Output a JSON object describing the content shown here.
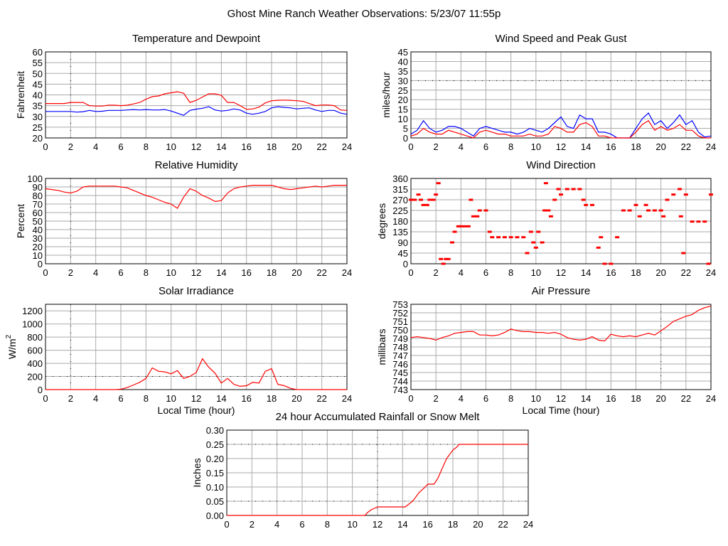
{
  "page_title": "Ghost Mine Ranch Weather Observations: 5/23/07 11:55p",
  "colors": {
    "red": "#ff0000",
    "blue": "#0000ff",
    "grid": "#aaaaaa"
  },
  "chart_data": [
    {
      "id": "temp",
      "type": "line",
      "title": "Temperature and Dewpoint",
      "xlabel": "",
      "ylabel": "Fahrenheit",
      "xlim": [
        0,
        24
      ],
      "ylim": [
        20,
        60
      ],
      "ystep": 5,
      "xstep": 2,
      "grid": true,
      "series": [
        {
          "name": "Temperature",
          "color": "#ff0000",
          "values": [
            36,
            36,
            36,
            36,
            36.5,
            36.5,
            36.5,
            35,
            34.8,
            34.8,
            35.2,
            35.2,
            35,
            35.2,
            35.8,
            36.5,
            38,
            39.2,
            39.5,
            40.5,
            41,
            41.5,
            40.8,
            36.5,
            37.5,
            39,
            40.5,
            40.5,
            39.8,
            36.5,
            36.5,
            35,
            33.3,
            33.5,
            34.3,
            36.3,
            37.3,
            37.5,
            37.6,
            37.5,
            37.3,
            37,
            36,
            35,
            35.3,
            35.3,
            35,
            33,
            32.8
          ]
        },
        {
          "name": "Dewpoint",
          "color": "#0000ff",
          "values": [
            32.3,
            32.3,
            32.3,
            32.3,
            32.3,
            32,
            32.2,
            32.8,
            32.3,
            32.4,
            32.8,
            32.8,
            32.8,
            33,
            33.2,
            33,
            33.2,
            33,
            33,
            33.2,
            32.5,
            31.5,
            30.5,
            32.8,
            33.4,
            33.8,
            34.5,
            33,
            32.5,
            32.8,
            33.5,
            33,
            31.5,
            31,
            31.5,
            32.3,
            34,
            34.5,
            34.2,
            34,
            33.5,
            33.8,
            34,
            33,
            32.3,
            32.8,
            32.8,
            31.5,
            31
          ]
        }
      ]
    },
    {
      "id": "wind",
      "type": "line",
      "title": "Wind Speed and Peak Gust",
      "xlabel": "",
      "ylabel": "miles/hour",
      "xlim": [
        0,
        24
      ],
      "ylim": [
        0,
        45
      ],
      "ystep": 5,
      "xstep": 2,
      "grid": true,
      "series": [
        {
          "name": "Peak Gust",
          "color": "#0000ff",
          "values": [
            2,
            4,
            9,
            5,
            3,
            4,
            6,
            6,
            5,
            3,
            1,
            5,
            6,
            5,
            4,
            3,
            3,
            2,
            3,
            5,
            4,
            3,
            5,
            8,
            11,
            6,
            5,
            12,
            10,
            10,
            3,
            3,
            2,
            0,
            0,
            0,
            5,
            10,
            13,
            7,
            9,
            5,
            8,
            12,
            7,
            9,
            3,
            0.5,
            1
          ]
        },
        {
          "name": "Wind Speed",
          "color": "#ff0000",
          "values": [
            1,
            2,
            5,
            3,
            2,
            2,
            4,
            3,
            2,
            1,
            0,
            3,
            4,
            3,
            2,
            2,
            1,
            1,
            1,
            2,
            1,
            1,
            2,
            6,
            5,
            3,
            3,
            7,
            8,
            6,
            1,
            1,
            0,
            0,
            0,
            0,
            3,
            7,
            9,
            4,
            6,
            4,
            5,
            7,
            4,
            4,
            1,
            0,
            0
          ]
        }
      ]
    },
    {
      "id": "hum",
      "type": "line",
      "title": "Relative Humidity",
      "xlabel": "",
      "ylabel": "Percent",
      "xlim": [
        0,
        24
      ],
      "ylim": [
        0,
        100
      ],
      "ystep": 10,
      "xstep": 2,
      "grid": true,
      "series": [
        {
          "name": "Relative Humidity",
          "color": "#ff0000",
          "values": [
            88,
            87,
            86,
            84,
            83,
            85,
            90,
            91,
            91,
            91,
            91,
            91,
            90,
            89,
            86,
            83,
            80,
            78,
            75,
            72,
            70,
            65,
            78,
            88,
            85,
            80,
            77,
            73,
            74,
            83,
            88,
            90,
            91,
            92,
            92,
            92,
            92,
            90,
            88,
            87,
            88,
            89,
            90,
            91,
            90,
            91,
            92,
            92,
            92
          ]
        }
      ]
    },
    {
      "id": "dir",
      "type": "scatter",
      "title": "Wind Direction",
      "xlabel": "",
      "ylabel": "degrees",
      "xlim": [
        0,
        24
      ],
      "ylim": [
        0,
        360
      ],
      "ystep": 45,
      "xstep": 2,
      "grid": true,
      "series": [
        {
          "name": "Wind Direction",
          "color": "#ff0000",
          "x": [
            0,
            0.3,
            0.6,
            0.8,
            1,
            1.3,
            1.5,
            1.8,
            2,
            2.2,
            2.4,
            2.6,
            2.8,
            3,
            3.3,
            3.5,
            3.8,
            4,
            4.3,
            4.6,
            4.8,
            5,
            5.3,
            5.5,
            6,
            6.3,
            6.5,
            7,
            7.5,
            8,
            8.5,
            9,
            9.3,
            9.6,
            9.8,
            10,
            10.2,
            10.5,
            10.7,
            10.8,
            11,
            11.2,
            11.5,
            11.8,
            12,
            12.5,
            13,
            13.5,
            13.8,
            14,
            14.5,
            15,
            15.2,
            15.5,
            16,
            16.5,
            17,
            17.5,
            18,
            18.3,
            18.8,
            19,
            19.5,
            20,
            20.2,
            20.5,
            21,
            21.5,
            21.6,
            21.8,
            22,
            22.5,
            23,
            23.5,
            23.8,
            24
          ],
          "values": [
            270,
            270,
            292,
            270,
            248,
            248,
            270,
            270,
            292,
            340,
            20,
            0,
            20,
            20,
            90,
            135,
            158,
            158,
            158,
            158,
            270,
            200,
            200,
            225,
            225,
            135,
            112,
            112,
            112,
            112,
            112,
            112,
            45,
            135,
            90,
            68,
            135,
            90,
            225,
            340,
            225,
            200,
            270,
            315,
            292,
            315,
            315,
            315,
            270,
            248,
            248,
            68,
            112,
            0,
            0,
            112,
            225,
            225,
            248,
            200,
            248,
            225,
            225,
            225,
            200,
            270,
            292,
            315,
            200,
            45,
            292,
            178,
            178,
            178,
            0,
            292
          ]
        }
      ]
    },
    {
      "id": "solar",
      "type": "line",
      "title": "Solar Irradiance",
      "xlabel": "Local Time (hour)",
      "ylabel": "W/m",
      "ylabel_sup": "2",
      "xlim": [
        0,
        24
      ],
      "ylim": [
        0,
        1300
      ],
      "ystep": 200,
      "ymax_tick": 1200,
      "xstep": 2,
      "grid": true,
      "series": [
        {
          "name": "Solar Irradiance",
          "color": "#ff0000",
          "values": [
            0,
            0,
            0,
            0,
            0,
            0,
            0,
            0,
            0,
            0,
            0,
            0,
            5,
            30,
            70,
            110,
            170,
            330,
            280,
            270,
            240,
            290,
            170,
            200,
            260,
            470,
            340,
            250,
            100,
            170,
            80,
            50,
            60,
            110,
            100,
            280,
            320,
            80,
            60,
            20,
            0,
            0,
            0,
            0,
            0,
            0,
            0,
            0,
            0
          ]
        }
      ]
    },
    {
      "id": "press",
      "type": "line",
      "title": "Air Pressure",
      "xlabel": "Local Time (hour)",
      "ylabel": "millibars",
      "xlim": [
        0,
        24
      ],
      "ylim": [
        743,
        753
      ],
      "ystep": 1,
      "xstep": 2,
      "grid": true,
      "series": [
        {
          "name": "Air Pressure",
          "color": "#ff0000",
          "values": [
            749.1,
            749.2,
            749.1,
            749,
            748.8,
            749.1,
            749.3,
            749.6,
            749.7,
            749.8,
            749.8,
            749.4,
            749.4,
            749.3,
            749.4,
            749.7,
            750.1,
            749.9,
            749.8,
            749.8,
            749.7,
            749.7,
            749.6,
            749.7,
            749.5,
            749.1,
            748.9,
            748.8,
            748.9,
            749.2,
            748.8,
            748.7,
            749.5,
            749.3,
            749.2,
            749.3,
            749.2,
            749.4,
            749.6,
            749.4,
            749.9,
            750.4,
            751,
            751.3,
            751.6,
            751.8,
            752.3,
            752.6,
            752.8
          ]
        }
      ]
    },
    {
      "id": "rain",
      "type": "line",
      "title": "24 hour Accumulated Rainfall or Snow Melt",
      "xlabel": "",
      "ylabel": "Inches",
      "xlim": [
        0,
        24
      ],
      "ylim": [
        0,
        0.3
      ],
      "ystep": 0.05,
      "xstep": 2,
      "grid": true,
      "series": [
        {
          "name": "Accumulated Rainfall",
          "color": "#ff0000",
          "x": [
            0,
            11,
            11.2,
            11.5,
            12,
            14.2,
            14.5,
            14.8,
            15.3,
            15.8,
            16,
            16.5,
            16.8,
            17,
            17.5,
            18,
            18.3,
            18.5,
            24
          ],
          "values": [
            0,
            0,
            0.01,
            0.02,
            0.03,
            0.03,
            0.04,
            0.05,
            0.08,
            0.1,
            0.11,
            0.11,
            0.13,
            0.15,
            0.2,
            0.23,
            0.24,
            0.25,
            0.25
          ]
        }
      ]
    }
  ]
}
